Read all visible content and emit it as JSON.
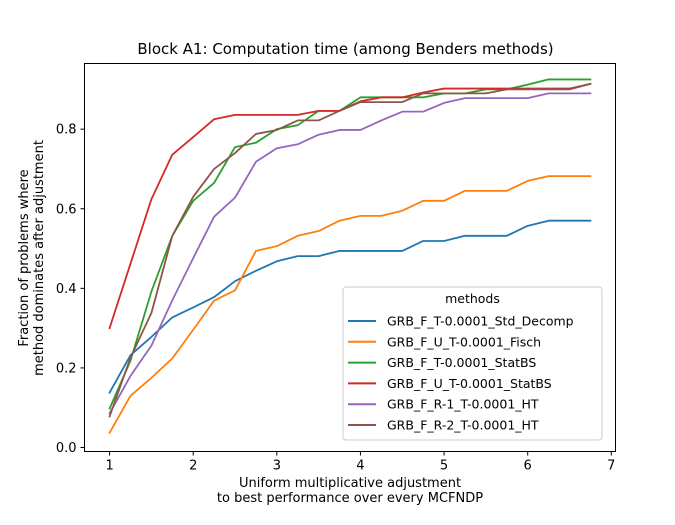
{
  "chart_data": {
    "type": "line",
    "title": "Block A1: Computation time (among Benders methods)",
    "xlabel": [
      "Uniform multiplicative adjustment",
      "to best performance over every MCFNDP"
    ],
    "ylabel": [
      "Fraction of problems where",
      "method dominates after adjustment"
    ],
    "xlim": [
      0.7,
      7.05
    ],
    "ylim": [
      -0.01,
      0.965
    ],
    "xticks": [
      1,
      2,
      3,
      4,
      5,
      6,
      7
    ],
    "yticks": [
      0.0,
      0.2,
      0.4,
      0.6,
      0.8
    ],
    "ytick_labels": [
      "0.0",
      "0.2",
      "0.4",
      "0.6",
      "0.8"
    ],
    "grid": false,
    "legend": {
      "title": "methods",
      "placement": "lower-right"
    },
    "x": [
      1.0,
      1.25,
      1.5,
      1.75,
      2.0,
      2.25,
      2.5,
      2.75,
      3.0,
      3.25,
      3.5,
      3.75,
      4.0,
      4.25,
      4.5,
      4.75,
      5.0,
      5.25,
      5.5,
      5.75,
      6.0,
      6.25,
      6.5,
      6.75
    ],
    "series": [
      {
        "name": "GRB_F_T-0.0001_Std_Decomp",
        "color": "#1f77b4",
        "values": [
          0.138,
          0.232,
          0.278,
          0.327,
          0.352,
          0.378,
          0.418,
          0.444,
          0.468,
          0.481,
          0.481,
          0.494,
          0.494,
          0.494,
          0.494,
          0.519,
          0.519,
          0.532,
          0.532,
          0.532,
          0.557,
          0.57,
          0.57,
          0.57
        ]
      },
      {
        "name": "GRB_F_U_T-0.0001_Fisch",
        "color": "#ff7f0e",
        "values": [
          0.037,
          0.13,
          0.175,
          0.224,
          0.296,
          0.369,
          0.395,
          0.494,
          0.506,
          0.532,
          0.544,
          0.57,
          0.582,
          0.582,
          0.595,
          0.62,
          0.62,
          0.645,
          0.645,
          0.645,
          0.67,
          0.682,
          0.682,
          0.682
        ]
      },
      {
        "name": "GRB_F_T-0.0001_StatBS",
        "color": "#2ca02c",
        "values": [
          0.098,
          0.218,
          0.392,
          0.532,
          0.62,
          0.665,
          0.755,
          0.766,
          0.8,
          0.81,
          0.846,
          0.846,
          0.88,
          0.88,
          0.88,
          0.88,
          0.89,
          0.89,
          0.9,
          0.9,
          0.912,
          0.925,
          0.925,
          0.925
        ]
      },
      {
        "name": "GRB_F_U_T-0.0001_StatBS",
        "color": "#d62728",
        "values": [
          0.3,
          0.462,
          0.624,
          0.736,
          0.78,
          0.825,
          0.836,
          0.836,
          0.836,
          0.836,
          0.846,
          0.846,
          0.87,
          0.88,
          0.88,
          0.892,
          0.902,
          0.902,
          0.902,
          0.902,
          0.902,
          0.902,
          0.902,
          0.914
        ]
      },
      {
        "name": "GRB_F_R-1_T-0.0001_HT",
        "color": "#9467bd",
        "values": [
          0.086,
          0.18,
          0.256,
          0.37,
          0.476,
          0.58,
          0.628,
          0.718,
          0.752,
          0.762,
          0.786,
          0.798,
          0.798,
          0.822,
          0.844,
          0.844,
          0.866,
          0.878,
          0.878,
          0.878,
          0.878,
          0.89,
          0.89,
          0.89
        ]
      },
      {
        "name": "GRB_F_R-2_T-0.0001_HT",
        "color": "#8c564b",
        "values": [
          0.078,
          0.226,
          0.338,
          0.532,
          0.63,
          0.7,
          0.74,
          0.788,
          0.798,
          0.822,
          0.822,
          0.846,
          0.868,
          0.868,
          0.868,
          0.89,
          0.89,
          0.89,
          0.89,
          0.9,
          0.9,
          0.9,
          0.9,
          0.914
        ]
      }
    ]
  }
}
